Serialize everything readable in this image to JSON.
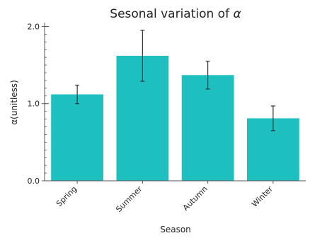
{
  "chart_data": {
    "type": "bar",
    "title_text": "Sesonal variation of ",
    "title_symbol": "α",
    "categories": [
      "Spring",
      "Summer",
      "Autumn",
      "Winter"
    ],
    "values": [
      1.12,
      1.62,
      1.37,
      0.81
    ],
    "errors": [
      0.12,
      0.33,
      0.18,
      0.16
    ],
    "xlabel": "Season",
    "ylabel": "α(unitless)",
    "ylim": [
      0.0,
      2.05
    ],
    "yticks": [
      0.0,
      1.0,
      2.0
    ],
    "ytick_labels": [
      "0.0",
      "1.0",
      "2.0"
    ],
    "minor_ytick_step": 0.1,
    "grid": false,
    "bar_color": "#1dbfbf",
    "errorbar_color": "#333333",
    "axis_color": "#555555"
  }
}
